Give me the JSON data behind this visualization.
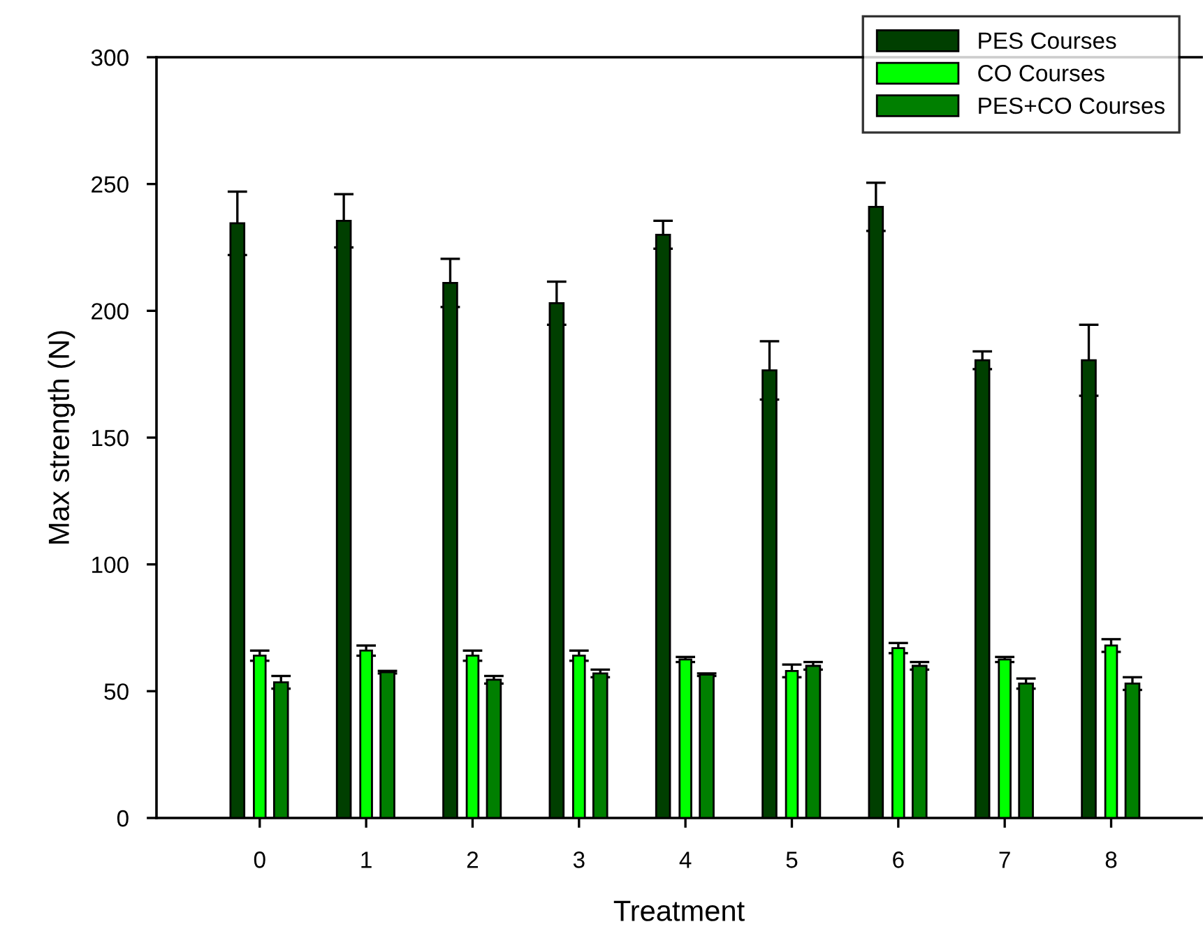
{
  "chart_data": {
    "type": "bar",
    "xlabel": "Treatment",
    "ylabel": "Max strength (N)",
    "categories": [
      "0",
      "1",
      "2",
      "3",
      "4",
      "5",
      "6",
      "7",
      "8"
    ],
    "series": [
      {
        "name": "PES Courses",
        "color": "#003f00",
        "values": [
          234.5,
          235.5,
          211,
          203,
          230,
          176.5,
          241,
          180.5,
          180.5
        ],
        "errors": [
          12.5,
          10.5,
          9.5,
          8.5,
          5.5,
          11.5,
          9.5,
          3.5,
          14
        ]
      },
      {
        "name": "CO Courses",
        "color": "#00ff00",
        "values": [
          64,
          66,
          64,
          64,
          62.5,
          58,
          67,
          62.5,
          68
        ],
        "errors": [
          2,
          2,
          2,
          2,
          1,
          2.5,
          2,
          1,
          2.5
        ]
      },
      {
        "name": "PES+CO Courses",
        "color": "#007f00",
        "values": [
          53.5,
          57.5,
          54.5,
          57,
          56.5,
          60,
          60,
          53,
          53
        ],
        "errors": [
          2.5,
          0.5,
          1.5,
          1.5,
          0.5,
          1.5,
          1.5,
          2,
          2.5
        ]
      }
    ],
    "ylim": [
      0,
      300
    ],
    "yticks": [
      0,
      50,
      100,
      150,
      200,
      250,
      300
    ],
    "grid": false,
    "legend": "top right"
  }
}
